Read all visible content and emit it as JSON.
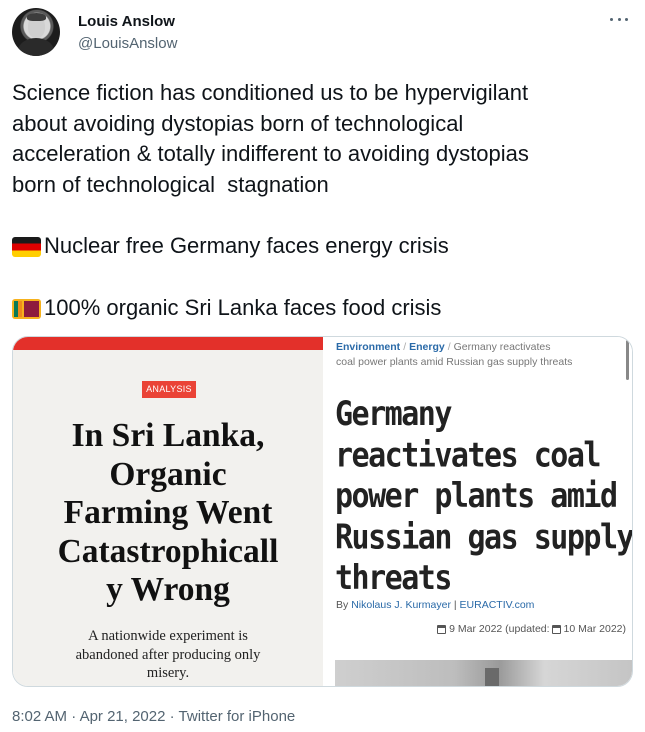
{
  "author": {
    "display_name": "Louis Anslow",
    "handle": "@LouisAnslow",
    "avatar_icon": "user-avatar"
  },
  "more_icon": "more-horizontal-icon",
  "tweet": {
    "lines": [
      "Science fiction has conditioned us to be hypervigilant",
      "about avoiding dystopias born of technological",
      "acceleration & totally indifferent to avoiding dystopias",
      "born of technological  stagnation"
    ],
    "germany_line": "Nuclear free Germany faces energy crisis",
    "srilanka_line": "100% organic Sri Lanka faces food crisis"
  },
  "media": {
    "left": {
      "badge": "ANALYSIS",
      "headline_lines": [
        "In Sri Lanka,",
        "Organic",
        "Farming Went",
        "Catastrophicall",
        "y Wrong"
      ],
      "sub_lines": [
        "A nationwide experiment is",
        "abandoned after producing only",
        "misery."
      ],
      "accent_color": "#e3302a"
    },
    "right": {
      "crumb_1": "Environment",
      "crumb_2": "Energy",
      "crumb_rest_1": "Germany reactivates",
      "crumb_rest_2": "coal power plants amid Russian gas supply threats",
      "headline_lines": [
        "Germany",
        "reactivates coal",
        "power plants amid",
        "Russian gas supply",
        "threats"
      ],
      "byline_prefix": "By",
      "byline_author": "Nikolaus J. Kurmayer",
      "byline_sep": "|",
      "byline_outlet": "EURACTIV.com",
      "date": "9 Mar 2022 (updated:",
      "updated": "10 Mar 2022)",
      "link_color": "#2a6aa8"
    }
  },
  "meta": {
    "time": "8:02 AM",
    "dot_1": "·",
    "date": "Apr 21, 2022",
    "dot_2": "·",
    "source": "Twitter for iPhone"
  }
}
